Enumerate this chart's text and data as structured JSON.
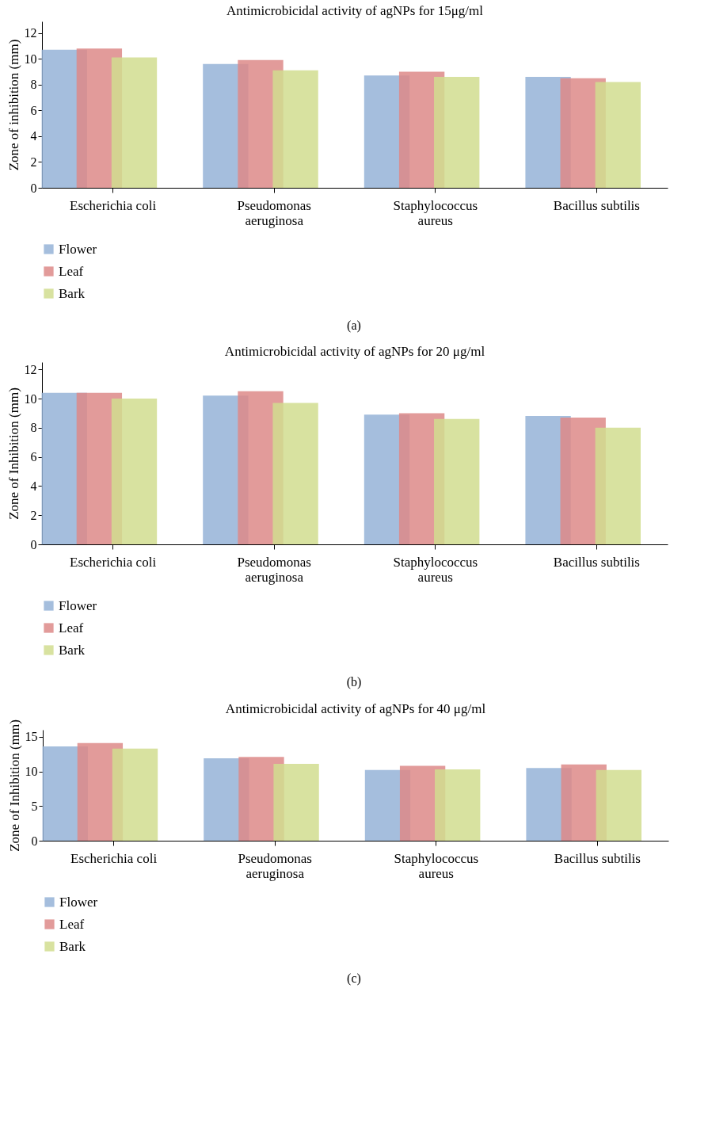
{
  "chart_data": [
    {
      "type": "bar",
      "title": "Antimicrobicidal activity of agNPs for 15μg/ml",
      "ylabel": "Zone of inhibition (mm)",
      "categories": [
        "Escherichia coli",
        "Pseudomonas aeruginosa",
        "Staphylococcus aureus",
        "Bacillus subtilis"
      ],
      "series": [
        {
          "name": "Flower",
          "color": "#95b3d7",
          "values": [
            10.7,
            9.6,
            8.7,
            8.6
          ]
        },
        {
          "name": "Leaf",
          "color": "#dd8a88",
          "values": [
            10.8,
            9.9,
            9.0,
            8.5
          ]
        },
        {
          "name": "Bark",
          "color": "#d1dd8f",
          "values": [
            10.1,
            9.1,
            8.6,
            8.2
          ]
        }
      ],
      "ylim": [
        0,
        12.9
      ],
      "yticks": [
        0,
        2,
        4,
        6,
        8,
        10,
        12
      ],
      "legend": "bottom left",
      "annotations": [
        "(a)"
      ]
    },
    {
      "type": "bar",
      "title": "Antimicrobicidal activity of agNPs for 20 μg/ml",
      "ylabel": "Zone of Inhibition (mm)",
      "categories": [
        "Escherichia coli",
        "Pseudomonas aeruginosa",
        "Staphylococcus aureus",
        "Bacillus subtilis"
      ],
      "series": [
        {
          "name": "Flower",
          "color": "#95b3d7",
          "values": [
            10.4,
            10.2,
            8.9,
            8.8
          ]
        },
        {
          "name": "Leaf",
          "color": "#dd8a88",
          "values": [
            10.4,
            10.5,
            9.0,
            8.7
          ]
        },
        {
          "name": "Bark",
          "color": "#d1dd8f",
          "values": [
            10.0,
            9.7,
            8.6,
            8.0
          ]
        }
      ],
      "ylim": [
        0,
        12.5
      ],
      "yticks": [
        0,
        2,
        4,
        6,
        8,
        10,
        12
      ],
      "legend": "bottom left",
      "annotations": [
        "(b)"
      ]
    },
    {
      "type": "bar",
      "title": "Antimicrobicidal activity of agNPs for 40 μg/ml",
      "ylabel": "Zone of Inhibition (mm)",
      "categories": [
        "Escherichia coli",
        "Pseudomonas aeruginosa",
        "Staphylococcus aureus",
        "Bacillus subtilis"
      ],
      "series": [
        {
          "name": "Flower",
          "color": "#95b3d7",
          "values": [
            13.6,
            11.9,
            10.2,
            10.5
          ]
        },
        {
          "name": "Leaf",
          "color": "#dd8a88",
          "values": [
            14.1,
            12.1,
            10.8,
            11.0
          ]
        },
        {
          "name": "Bark",
          "color": "#d1dd8f",
          "values": [
            13.3,
            11.1,
            10.3,
            10.2
          ]
        }
      ],
      "ylim": [
        0,
        16
      ],
      "yticks": [
        0,
        5,
        10,
        15
      ],
      "legend": "bottom left",
      "annotations": [
        "(c)"
      ]
    }
  ]
}
